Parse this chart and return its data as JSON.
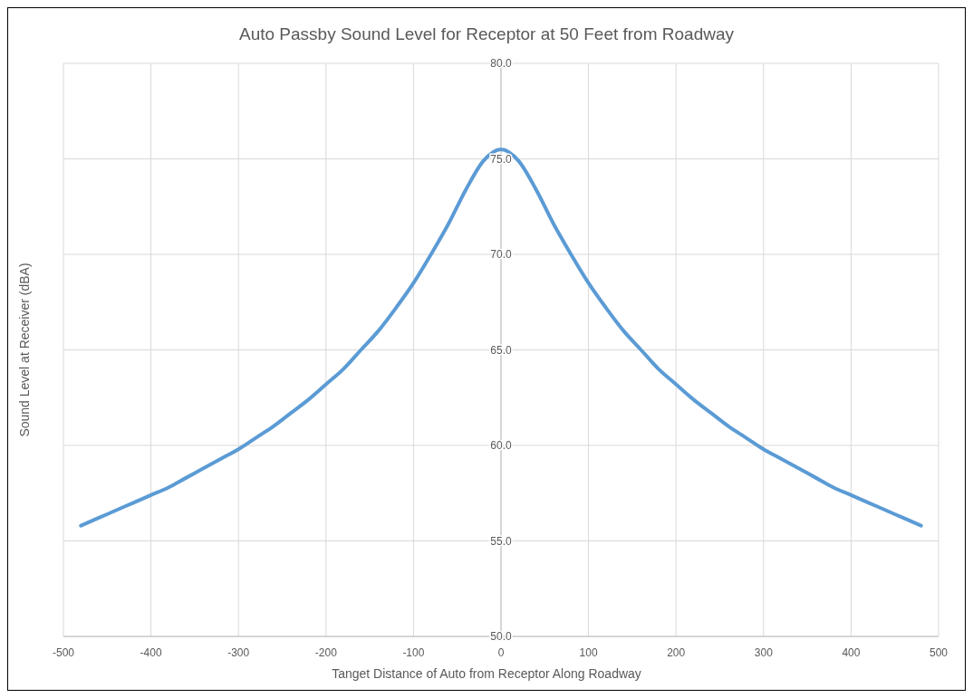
{
  "chart_data": {
    "type": "line",
    "title": "Auto Passby Sound Level for Receptor at 50 Feet from Roadway",
    "xlabel": "Tanget Distance of Auto from Receptor Along Roadway",
    "ylabel": "Sound Level at Receiver (dBA)",
    "x": [
      -480,
      -460,
      -440,
      -420,
      -400,
      -380,
      -360,
      -340,
      -320,
      -300,
      -280,
      -260,
      -240,
      -220,
      -200,
      -180,
      -160,
      -140,
      -120,
      -100,
      -80,
      -60,
      -40,
      -20,
      0,
      20,
      40,
      60,
      80,
      100,
      120,
      140,
      160,
      180,
      200,
      220,
      240,
      260,
      280,
      300,
      320,
      340,
      360,
      380,
      400,
      420,
      440,
      460,
      480
    ],
    "series": [
      {
        "color": "#5b9bd5",
        "values": [
          55.8,
          56.2,
          56.6,
          57.0,
          57.4,
          57.8,
          58.3,
          58.8,
          59.3,
          59.8,
          60.4,
          61.0,
          61.7,
          62.4,
          63.2,
          64.0,
          65.0,
          66.0,
          67.2,
          68.5,
          70.0,
          71.6,
          73.4,
          74.9,
          75.5,
          74.9,
          73.4,
          71.6,
          70.0,
          68.5,
          67.2,
          66.0,
          65.0,
          64.0,
          63.2,
          62.4,
          61.7,
          61.0,
          60.4,
          59.8,
          59.3,
          58.8,
          58.3,
          57.8,
          57.4,
          57.0,
          56.6,
          56.2,
          55.8
        ]
      }
    ],
    "xlim": [
      -500,
      500
    ],
    "xticks": [
      -500,
      -400,
      -300,
      -200,
      -100,
      0,
      100,
      200,
      300,
      400,
      500
    ],
    "ylim": [
      50,
      80
    ],
    "yticks": [
      {
        "value": 50,
        "label": "50.0"
      },
      {
        "value": 55,
        "label": "55.0"
      },
      {
        "value": 60,
        "label": "60.0"
      },
      {
        "value": 65,
        "label": "65.0"
      },
      {
        "value": 70,
        "label": "70.0"
      },
      {
        "value": 75,
        "label": "75.0"
      },
      {
        "value": 80,
        "label": "80.0"
      }
    ],
    "grid": true,
    "marker": "none",
    "line_style": "solid"
  }
}
